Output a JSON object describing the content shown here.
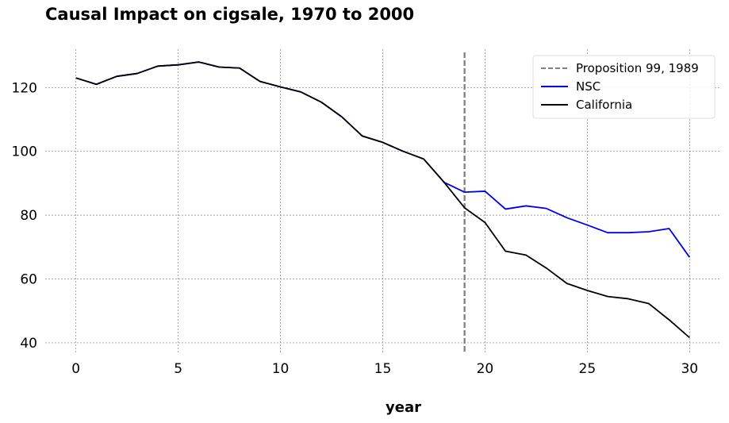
{
  "chart_data": {
    "type": "line",
    "title": "Causal Impact on cigsale, 1970 to 2000",
    "xlabel": "year",
    "ylabel": "",
    "xlim": [
      -1.5,
      31.5
    ],
    "ylim": [
      37,
      132
    ],
    "xticks": [
      0,
      5,
      10,
      15,
      20,
      25,
      30
    ],
    "yticks": [
      40,
      60,
      80,
      100,
      120
    ],
    "grid": true,
    "legend_position": "top-right",
    "vline": {
      "x": 19,
      "label": "Proposition 99, 1989",
      "color": "#808080",
      "style": "dashed"
    },
    "x": [
      0,
      1,
      2,
      3,
      4,
      5,
      6,
      7,
      8,
      9,
      10,
      11,
      12,
      13,
      14,
      15,
      16,
      17,
      18,
      19,
      20,
      21,
      22,
      23,
      24,
      25,
      26,
      27,
      28,
      29,
      30
    ],
    "series": [
      {
        "name": "NSC",
        "color": "#0000ee",
        "values": [
          123.0,
          121.0,
          123.5,
          124.4,
          126.7,
          127.1,
          128.0,
          126.4,
          126.1,
          121.9,
          120.2,
          118.6,
          115.4,
          110.8,
          104.8,
          102.8,
          100.0,
          97.6,
          90.3,
          87.2,
          87.5,
          81.9,
          82.9,
          82.1,
          79.2,
          76.9,
          74.5,
          74.5,
          74.8,
          75.8,
          66.8
        ]
      },
      {
        "name": "California",
        "color": "#000000",
        "values": [
          123.0,
          121.0,
          123.5,
          124.4,
          126.7,
          127.1,
          128.0,
          126.4,
          126.1,
          121.9,
          120.2,
          118.6,
          115.4,
          110.8,
          104.8,
          102.8,
          100.0,
          97.6,
          90.3,
          82.3,
          77.7,
          68.7,
          67.5,
          63.4,
          58.6,
          56.4,
          54.5,
          53.8,
          52.3,
          47.2,
          41.6
        ]
      }
    ]
  }
}
